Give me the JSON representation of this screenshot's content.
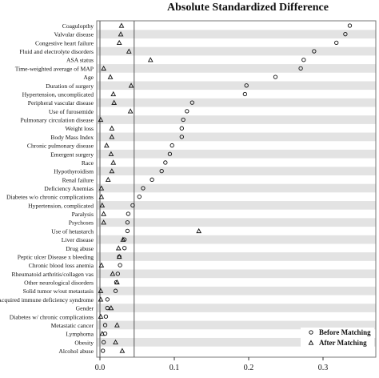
{
  "chart_data": {
    "type": "scatter",
    "title": "Absolute Standardized Difference",
    "xlabel": "",
    "ylabel": "",
    "xlim": [
      0.0,
      0.36
    ],
    "xticks": [
      0.0,
      0.1,
      0.2,
      0.3
    ],
    "xtick_labels": [
      "0.0",
      "0.1",
      "0.2",
      "0.3"
    ],
    "reference_line": 0.046,
    "grid": "alternating horizontal bands",
    "legend_position": "bottom-right",
    "categories": [
      "Coagulopthy",
      "Valvular disease",
      "Congestive heart failure",
      "Fluid and electrolyte disorders",
      "ASA status",
      "Time-weighted average of MAP",
      "Age",
      "Duration of surgery",
      "Hypertension, uncomplicated",
      "Peripheral vascular disease",
      "Use of furosemide",
      "Pulmonary circulation disease",
      "Weight loss",
      "Body Mass Index",
      "Chronic pulmonary disease",
      "Emergent surgery",
      "Race",
      "Hypothyroidism",
      "Renal failure",
      "Deficiency Anemias",
      "Diabetes w/o chronic complications",
      "Hypertension, complicated",
      "Paralysis",
      "Psychoses",
      "Use of hetastarch",
      "Liver disease",
      "Drug abuse",
      "Peptic ulcer Disease x bleeding",
      "Chronic blood loss anemia",
      "Rheumatoid arthritis/collagen vas",
      "Other neurological disorders",
      "Solid tumor w/out metastasis",
      "Acquired immune deficiency syndrome",
      "Gender",
      "Diabetes w/ chronic complications",
      "Metastatic cancer",
      "Lymphoma",
      "Obesity",
      "Alcohol abuse"
    ],
    "series": [
      {
        "name": "Before Matching",
        "marker": "circle",
        "values": [
          0.336,
          0.33,
          0.318,
          0.288,
          0.274,
          0.27,
          0.236,
          0.197,
          0.195,
          0.124,
          0.117,
          0.112,
          0.11,
          0.11,
          0.097,
          0.094,
          0.088,
          0.083,
          0.07,
          0.058,
          0.053,
          0.044,
          0.038,
          0.037,
          0.037,
          0.033,
          0.033,
          0.026,
          0.027,
          0.024,
          0.022,
          0.021,
          0.01,
          0.01,
          0.008,
          0.007,
          0.007,
          0.005,
          0.004
        ]
      },
      {
        "name": "After Matching",
        "marker": "triangle",
        "values": [
          0.029,
          0.028,
          0.026,
          0.039,
          0.068,
          0.005,
          0.014,
          0.042,
          0.018,
          0.019,
          0.041,
          0.001,
          0.016,
          0.016,
          0.009,
          0.015,
          0.018,
          0.016,
          0.011,
          0.002,
          0.002,
          0.003,
          0.005,
          0.005,
          0.133,
          0.031,
          0.025,
          0.026,
          0.002,
          0.017,
          0.023,
          0.001,
          0.001,
          0.015,
          0.001,
          0.023,
          0.003,
          0.021,
          0.03
        ]
      }
    ]
  }
}
